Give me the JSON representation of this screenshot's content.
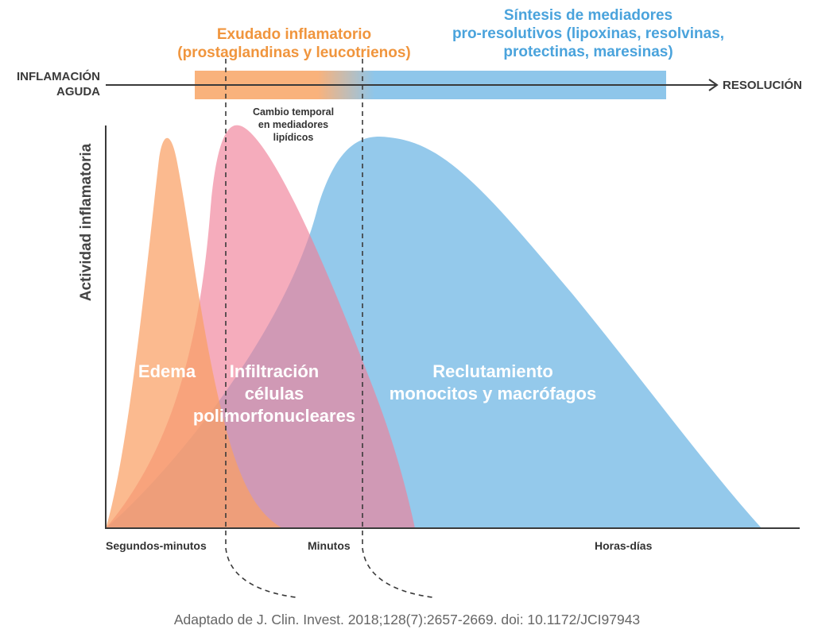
{
  "top": {
    "exudate_line1": "Exudado inflamatorio",
    "exudate_line2": "(prostaglandinas y leucotrienos)",
    "synthesis_line1": "Síntesis de mediadores",
    "synthesis_line2": "pro-resolutivos (lipoxinas, resolvinas,",
    "synthesis_line3": "protectinas, maresinas)"
  },
  "timeline": {
    "left_line1": "INFLAMACIÓN",
    "left_line2": "AGUDA",
    "right": "RESOLUCIÓN"
  },
  "note": {
    "line1": "Cambio temporal",
    "line2": "en mediadores",
    "line3": "lipídicos"
  },
  "yaxis_label": "Actividad inflamatoria",
  "areas": {
    "edema": "Edema",
    "pmn_line1": "Infiltración",
    "pmn_line2": "células",
    "pmn_line3": "polimorfonucleares",
    "mono_line1": "Reclutamiento",
    "mono_line2": "monocitos y macrófagos"
  },
  "ticks": {
    "t1": "Segundos-minutos",
    "t2": "Minutos",
    "t3": "Horas-días"
  },
  "citation": "Adaptado de J. Clin. Invest. 2018;128(7):2657-2669. doi: 10.1172/JCI97943",
  "colors": {
    "orange": "#f9b27c",
    "pink": "#f07f98",
    "blue": "#8ec6ea",
    "orange_text": "#f0953d",
    "blue_text": "#4aa3dc"
  }
}
